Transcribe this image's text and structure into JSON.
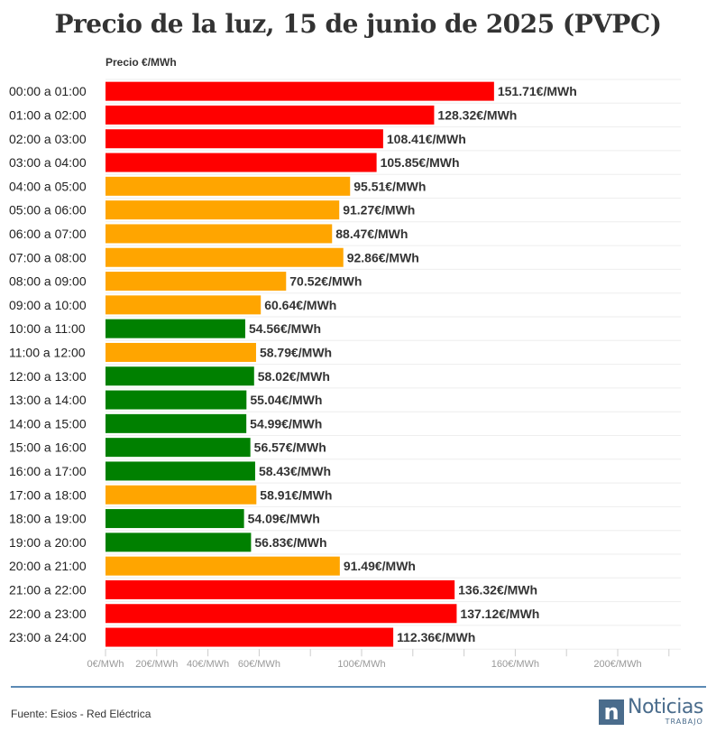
{
  "chart_data": {
    "type": "bar",
    "orientation": "horizontal",
    "title": "Precio de la luz, 15 de junio de 2025 (PVPC)",
    "ylabel": "Precio €/MWh",
    "xlabel": "",
    "xlim": [
      0,
      225
    ],
    "categories": [
      "00:00 a 01:00",
      "01:00 a 02:00",
      "02:00 a 03:00",
      "03:00 a 04:00",
      "04:00 a 05:00",
      "05:00 a 06:00",
      "06:00 a 07:00",
      "07:00 a 08:00",
      "08:00 a 09:00",
      "09:00 a 10:00",
      "10:00 a 11:00",
      "11:00 a 12:00",
      "12:00 a 13:00",
      "13:00 a 14:00",
      "14:00 a 15:00",
      "15:00 a 16:00",
      "16:00 a 17:00",
      "17:00 a 18:00",
      "18:00 a 19:00",
      "19:00 a 20:00",
      "20:00 a 21:00",
      "21:00 a 22:00",
      "22:00 a 23:00",
      "23:00 a 24:00"
    ],
    "values": [
      151.71,
      128.32,
      108.41,
      105.85,
      95.51,
      91.27,
      88.47,
      92.86,
      70.52,
      60.64,
      54.56,
      58.79,
      58.02,
      55.04,
      54.99,
      56.57,
      58.43,
      58.91,
      54.09,
      56.83,
      91.49,
      136.32,
      137.12,
      112.36
    ],
    "value_labels": [
      "151.71€/MWh",
      "128.32€/MWh",
      "108.41€/MWh",
      "105.85€/MWh",
      "95.51€/MWh",
      "91.27€/MWh",
      "88.47€/MWh",
      "92.86€/MWh",
      "70.52€/MWh",
      "60.64€/MWh",
      "54.56€/MWh",
      "58.79€/MWh",
      "58.02€/MWh",
      "55.04€/MWh",
      "54.99€/MWh",
      "56.57€/MWh",
      "58.43€/MWh",
      "58.91€/MWh",
      "54.09€/MWh",
      "56.83€/MWh",
      "91.49€/MWh",
      "136.32€/MWh",
      "137.12€/MWh",
      "112.36€/MWh"
    ],
    "levels": [
      "alto",
      "alto",
      "alto",
      "alto",
      "medio",
      "medio",
      "medio",
      "medio",
      "medio",
      "medio",
      "bajo",
      "medio",
      "bajo",
      "bajo",
      "bajo",
      "bajo",
      "bajo",
      "medio",
      "bajo",
      "bajo",
      "medio",
      "alto",
      "alto",
      "alto"
    ],
    "level_colors": {
      "alto": "#ff0000",
      "medio": "#ffa500",
      "bajo": "#008000"
    },
    "x_ticks": [
      {
        "value": 0,
        "label": "0€/MWh"
      },
      {
        "value": 20,
        "label": "20€/MWh"
      },
      {
        "value": 40,
        "label": "40€/MWh"
      },
      {
        "value": 60,
        "label": "60€/MWh"
      },
      {
        "value": 80,
        "label": ""
      },
      {
        "value": 100,
        "label": "100€/MWh"
      },
      {
        "value": 120,
        "label": ""
      },
      {
        "value": 140,
        "label": ""
      },
      {
        "value": 160,
        "label": "160€/MWh"
      },
      {
        "value": 180,
        "label": ""
      },
      {
        "value": 200,
        "label": "200€/MWh"
      },
      {
        "value": 220,
        "label": ""
      }
    ],
    "grid": true,
    "legend": "none"
  },
  "footer": {
    "source": "Fuente: Esios - Red Eléctrica",
    "logo_mark": "n",
    "logo_name": "Noticias",
    "logo_sub": "TRABAJO"
  },
  "colors": {
    "accent": "#5b8ab5",
    "brand": "#4a6c8c"
  }
}
